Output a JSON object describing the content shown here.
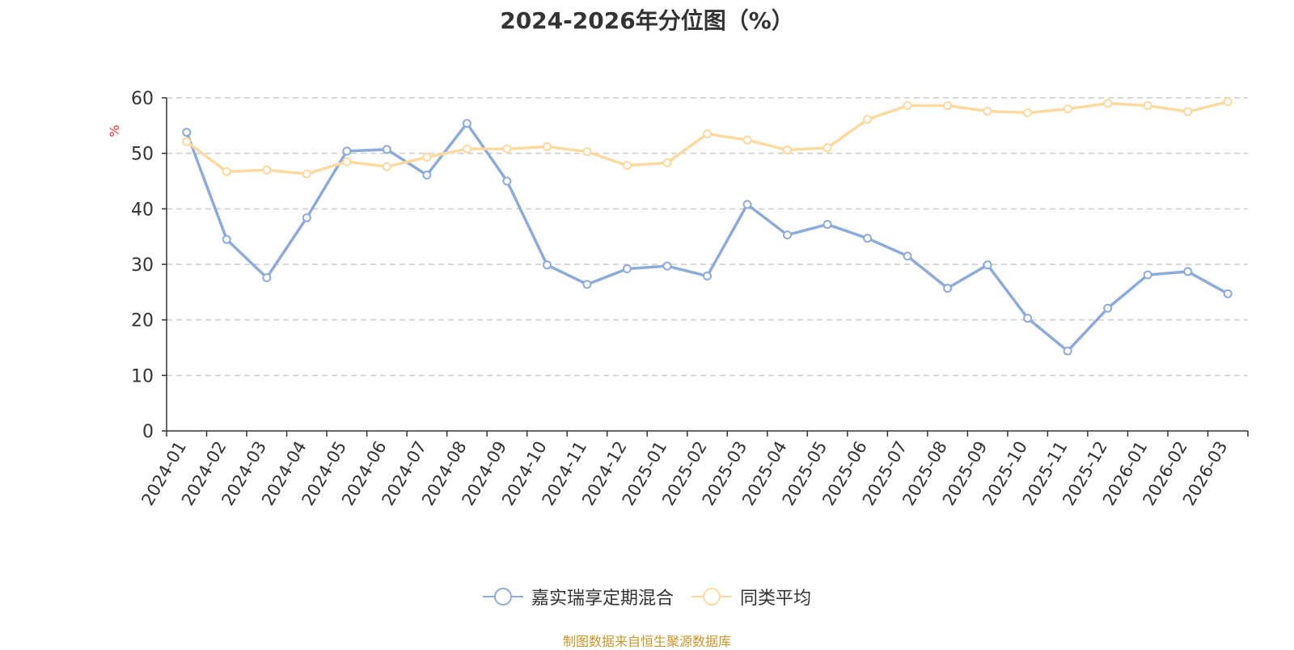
{
  "chart_data": {
    "type": "line",
    "title": "2024-2026年分位图（%）",
    "ylabel": "%",
    "xlabel": "",
    "ylim": [
      0,
      60
    ],
    "yticks": [
      0,
      10,
      20,
      30,
      40,
      50,
      60
    ],
    "grid": true,
    "legend_position": "bottom-center",
    "categories": [
      "2024-01",
      "2024-02",
      "2024-03",
      "2024-04",
      "2024-05",
      "2024-06",
      "2024-07",
      "2024-08",
      "2024-09",
      "2024-10",
      "2024-11",
      "2024-12",
      "2025-01",
      "2025-02",
      "2025-03",
      "2025-04",
      "2025-05",
      "2025-06",
      "2025-07",
      "2025-08",
      "2025-09",
      "2025-10",
      "2025-11",
      "2025-12",
      "2026-01",
      "2026-02",
      "2026-03"
    ],
    "series": [
      {
        "name": "嘉实瑞享定期混合",
        "color": "#8dabd8",
        "values": [
          53.8,
          34.5,
          27.6,
          38.4,
          50.4,
          50.7,
          46.1,
          55.4,
          45.0,
          29.9,
          26.4,
          29.2,
          29.7,
          27.9,
          40.8,
          35.3,
          37.2,
          34.7,
          31.5,
          25.7,
          29.9,
          20.3,
          14.4,
          22.1,
          28.1,
          28.7,
          24.7
        ]
      },
      {
        "name": "同类平均",
        "color": "#fcd99e",
        "values": [
          52.1,
          46.7,
          47.0,
          46.3,
          48.5,
          47.6,
          49.3,
          50.8,
          50.8,
          51.2,
          50.3,
          47.8,
          48.3,
          53.5,
          52.4,
          50.6,
          51.0,
          56.1,
          58.6,
          58.6,
          57.6,
          57.3,
          58.0,
          59.0,
          58.6,
          57.5,
          59.3
        ]
      }
    ]
  },
  "source_text": "制图数据来自恒生聚源数据库",
  "colors": {
    "axis": "#333333",
    "grid": "#cccccc",
    "ylabel": "#e8372e",
    "source": "#c8972e"
  }
}
